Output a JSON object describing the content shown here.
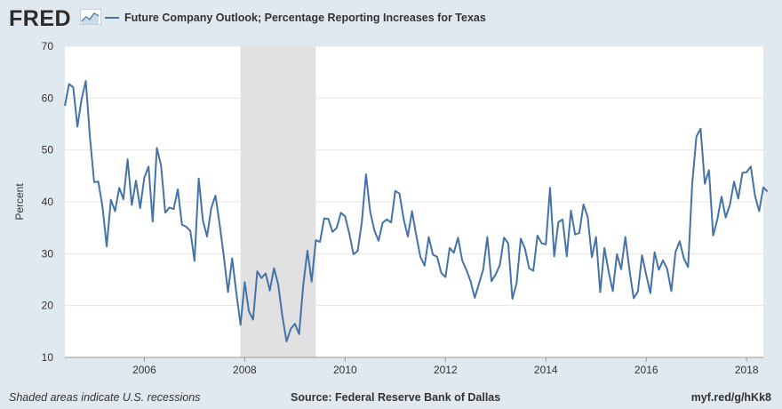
{
  "header": {
    "logo_text": "FRED",
    "logo_icon": "line-chart-icon",
    "legend_label": "Future Company Outlook; Percentage Reporting Increases for Texas"
  },
  "colors": {
    "series": "#4572a7",
    "plot_background": "#ffffff",
    "page_background": "#e1e9f0",
    "recession_shade": "#e1e1e1",
    "grid": "#e6e6e6"
  },
  "footer": {
    "note": "Shaded areas indicate U.S. recessions",
    "source": "Source: Federal Reserve Bank of Dallas",
    "url": "myf.red/g/hKk8"
  },
  "chart_data": {
    "type": "line",
    "title": "",
    "xlabel": "",
    "ylabel": "Percent",
    "xlim": [
      "2004-06",
      "2018-05"
    ],
    "ylim": [
      10,
      70
    ],
    "yticks": [
      10,
      20,
      30,
      40,
      50,
      60,
      70
    ],
    "xticks": [
      "2006",
      "2008",
      "2010",
      "2012",
      "2014",
      "2016",
      "2018"
    ],
    "grid": "horizontal",
    "legend_position": "top-left",
    "recessions": [
      {
        "start": "2007-12",
        "end": "2009-06"
      }
    ],
    "series": [
      {
        "name": "Future Company Outlook; Percentage Reporting Increases for Texas",
        "x_start": "2004-06",
        "frequency": "monthly",
        "values": [
          58.5,
          62.7,
          62.1,
          54.5,
          59.8,
          63.3,
          52.4,
          43.8,
          43.9,
          39.0,
          31.4,
          40.4,
          38.2,
          42.7,
          40.5,
          48.2,
          39.4,
          44.1,
          38.8,
          44.7,
          46.8,
          36.2,
          50.4,
          47.0,
          37.9,
          38.9,
          38.6,
          42.4,
          35.6,
          35.2,
          34.4,
          28.6,
          44.5,
          36.4,
          33.3,
          38.8,
          41.2,
          35.7,
          29.5,
          22.6,
          29.1,
          22.4,
          16.3,
          24.5,
          18.9,
          17.3,
          26.6,
          25.3,
          26.2,
          22.9,
          27.2,
          24.1,
          18.0,
          13.1,
          15.5,
          16.5,
          14.5,
          24.0,
          30.6,
          24.6,
          32.6,
          32.3,
          36.8,
          36.7,
          34.2,
          35.0,
          37.9,
          37.2,
          33.9,
          29.9,
          30.5,
          36.1,
          45.3,
          38.1,
          34.5,
          32.5,
          36.0,
          36.6,
          36.0,
          42.1,
          41.6,
          36.7,
          33.3,
          38.2,
          33.6,
          29.4,
          27.7,
          33.2,
          29.8,
          29.4,
          26.3,
          25.5,
          31.1,
          30.2,
          33.1,
          28.7,
          26.9,
          24.7,
          21.5,
          24.2,
          26.9,
          33.2,
          24.7,
          26.0,
          27.8,
          33.1,
          32.0,
          21.3,
          24.3,
          32.9,
          31.0,
          27.2,
          26.7,
          33.5,
          32.0,
          31.8,
          42.7,
          29.5,
          36.1,
          36.6,
          29.5,
          38.3,
          33.7,
          34.0,
          39.5,
          37.1,
          29.3,
          33.2,
          22.6,
          31.1,
          26.6,
          22.8,
          29.9,
          27.0,
          33.2,
          26.8,
          21.4,
          22.7,
          29.7,
          25.9,
          22.4,
          30.3,
          26.9,
          28.7,
          27.1,
          22.8,
          30.3,
          32.4,
          29.1,
          27.4,
          43.5,
          52.6,
          54.1,
          43.5,
          46.1,
          33.5,
          36.6,
          41.0,
          37.0,
          39.4,
          43.9,
          40.6,
          45.6,
          45.7,
          46.8,
          41.2,
          38.2,
          42.8,
          42.0
        ]
      }
    ]
  }
}
